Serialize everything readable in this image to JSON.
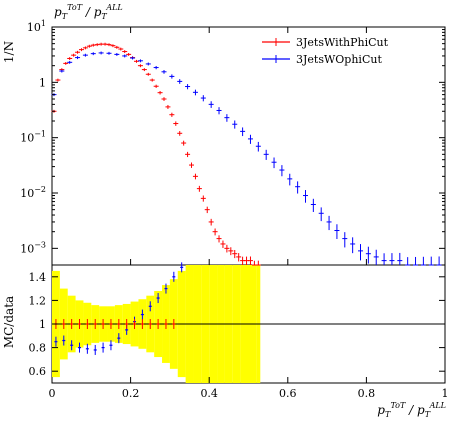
{
  "chart_data": [
    {
      "type": "line",
      "panel": "main",
      "title": "p_T^ToT / p_T^ALL",
      "ylabel": "1/N",
      "yscale": "log",
      "ylim": [
        0.0005,
        10
      ],
      "xlim": [
        0,
        1
      ],
      "y_ticks": [
        {
          "value": 0.001,
          "label": "10^-3",
          "base": "10",
          "exp": "−3"
        },
        {
          "value": 0.01,
          "label": "10^-2",
          "base": "10",
          "exp": "−2"
        },
        {
          "value": 0.1,
          "label": "10^-1",
          "base": "10",
          "exp": "−1"
        },
        {
          "value": 1,
          "label": "1",
          "base": "1",
          "exp": ""
        },
        {
          "value": 10,
          "label": "10^1",
          "base": "10",
          "exp": "1"
        }
      ],
      "legend": {
        "placement": "top-right"
      },
      "series": [
        {
          "name": "3JetsWithPhiCut",
          "color": "#ff0000",
          "x": [
            0.005,
            0.015,
            0.025,
            0.035,
            0.045,
            0.055,
            0.065,
            0.075,
            0.085,
            0.095,
            0.105,
            0.115,
            0.125,
            0.135,
            0.145,
            0.155,
            0.165,
            0.175,
            0.185,
            0.195,
            0.205,
            0.215,
            0.225,
            0.235,
            0.245,
            0.255,
            0.265,
            0.275,
            0.285,
            0.295,
            0.305,
            0.315,
            0.325,
            0.335,
            0.345,
            0.355,
            0.365,
            0.375,
            0.385,
            0.395,
            0.405,
            0.415,
            0.425,
            0.435,
            0.445,
            0.455,
            0.465,
            0.475,
            0.485,
            0.495,
            0.505,
            0.515,
            0.525
          ],
          "y": [
            0.3,
            1.1,
            1.7,
            2.2,
            2.7,
            3.1,
            3.5,
            3.9,
            4.2,
            4.5,
            4.7,
            4.8,
            4.9,
            4.9,
            4.8,
            4.6,
            4.3,
            4.0,
            3.6,
            3.2,
            2.8,
            2.4,
            2.0,
            1.7,
            1.4,
            1.1,
            0.85,
            0.65,
            0.5,
            0.36,
            0.26,
            0.18,
            0.12,
            0.08,
            0.05,
            0.032,
            0.02,
            0.012,
            0.008,
            0.005,
            0.003,
            0.002,
            0.0015,
            0.0012,
            0.001,
            0.0009,
            0.0008,
            0.0007,
            0.0006,
            0.0006,
            0.0006,
            0.0005,
            0.0005
          ]
        },
        {
          "name": "3JetsWOphiCut",
          "color": "#0000ff",
          "x": [
            0.005,
            0.025,
            0.045,
            0.065,
            0.085,
            0.105,
            0.125,
            0.145,
            0.165,
            0.185,
            0.205,
            0.225,
            0.245,
            0.265,
            0.285,
            0.305,
            0.325,
            0.345,
            0.365,
            0.385,
            0.405,
            0.425,
            0.445,
            0.465,
            0.485,
            0.505,
            0.525,
            0.545,
            0.565,
            0.585,
            0.605,
            0.625,
            0.645,
            0.665,
            0.685,
            0.705,
            0.725,
            0.745,
            0.765,
            0.785,
            0.805,
            0.825,
            0.845,
            0.865,
            0.885,
            0.905,
            0.925,
            0.945,
            0.965,
            0.985
          ],
          "y": [
            0.6,
            1.6,
            2.3,
            2.8,
            3.1,
            3.3,
            3.4,
            3.35,
            3.2,
            3.0,
            2.75,
            2.45,
            2.15,
            1.85,
            1.55,
            1.28,
            1.04,
            0.84,
            0.66,
            0.52,
            0.4,
            0.31,
            0.23,
            0.175,
            0.13,
            0.095,
            0.07,
            0.05,
            0.036,
            0.026,
            0.018,
            0.013,
            0.009,
            0.0062,
            0.0043,
            0.003,
            0.0021,
            0.0015,
            0.0012,
            0.0009,
            0.0008,
            0.0007,
            0.0006,
            0.0006,
            0.0006,
            0.0005,
            0.0005,
            0.0005,
            0.0005,
            0.0005
          ]
        }
      ]
    },
    {
      "type": "scatter",
      "panel": "ratio",
      "ylabel": "MC/data",
      "xlabel": "p_T^ToT / p_T^ALL",
      "ylim": [
        0.5,
        1.5
      ],
      "xlim": [
        0,
        1
      ],
      "y_ticks": [
        0.6,
        0.8,
        1,
        1.2,
        1.4
      ],
      "x_ticks": [
        0,
        0.2,
        0.4,
        0.6,
        0.8,
        1
      ],
      "reference_line": 1,
      "band": {
        "color": "#ffff00",
        "x": [
          0.0,
          0.02,
          0.04,
          0.06,
          0.08,
          0.1,
          0.12,
          0.14,
          0.16,
          0.18,
          0.2,
          0.22,
          0.24,
          0.26,
          0.28,
          0.3,
          0.32,
          0.34,
          0.36,
          0.38,
          0.4,
          0.42,
          0.44,
          0.46,
          0.48,
          0.5,
          0.52,
          0.53
        ],
        "half_width": [
          0.45,
          0.3,
          0.24,
          0.2,
          0.18,
          0.16,
          0.15,
          0.15,
          0.16,
          0.17,
          0.19,
          0.21,
          0.24,
          0.28,
          0.33,
          0.38,
          0.45,
          0.5,
          0.5,
          0.5,
          0.5,
          0.5,
          0.5,
          0.5,
          0.5,
          0.5,
          0.5,
          0.5
        ]
      },
      "series": [
        {
          "name": "3JetsWOphiCut",
          "color": "#0000ff",
          "x": [
            0.01,
            0.03,
            0.05,
            0.07,
            0.09,
            0.11,
            0.13,
            0.15,
            0.17,
            0.19,
            0.21,
            0.23,
            0.25,
            0.27,
            0.29,
            0.31,
            0.33
          ],
          "y": [
            0.85,
            0.86,
            0.82,
            0.8,
            0.79,
            0.78,
            0.8,
            0.82,
            0.88,
            0.95,
            1.02,
            1.08,
            1.15,
            1.22,
            1.3,
            1.4,
            1.48
          ]
        },
        {
          "name": "3JetsWithPhiCut",
          "color": "#ff0000",
          "x": [
            0.01,
            0.03,
            0.05,
            0.07,
            0.09,
            0.11,
            0.13,
            0.15,
            0.17,
            0.19,
            0.21,
            0.23,
            0.25,
            0.27,
            0.29,
            0.31
          ],
          "y": [
            1.0,
            1.0,
            1.0,
            1.0,
            1.0,
            1.0,
            1.0,
            1.0,
            1.0,
            1.0,
            1.0,
            1.0,
            1.0,
            1.0,
            1.0,
            1.0
          ]
        }
      ]
    }
  ]
}
